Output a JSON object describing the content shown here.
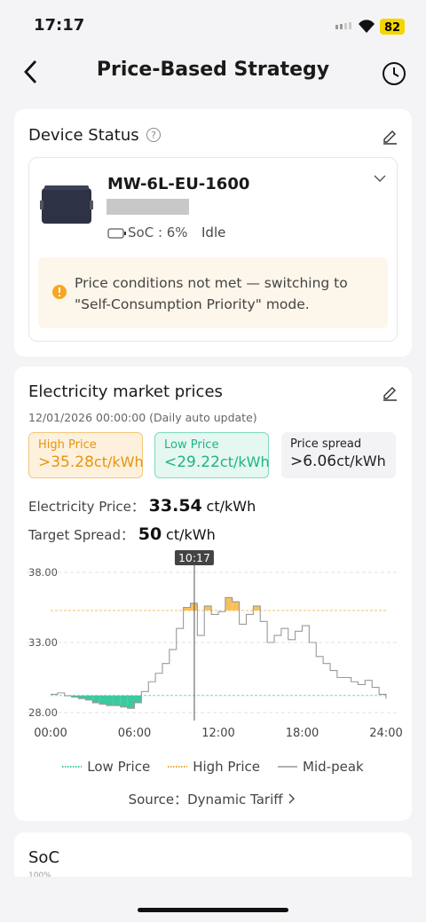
{
  "status_bar": {
    "time": "17:17",
    "battery": "82"
  },
  "header": {
    "title": "Price-Based Strategy"
  },
  "device_status": {
    "title": "Device Status",
    "device": {
      "name": "MW-6L-EU-1600",
      "soc": "SoC : 6%",
      "state": "Idle"
    },
    "warning": "Price conditions not met — switching to \"Self-Consumption Priority\" mode."
  },
  "market": {
    "title": "Electricity market prices",
    "updated": "12/01/2026 00:00:00 (Daily auto update)",
    "summary": [
      {
        "label": "High Price",
        "value": ">35.28",
        "unit": "ct/kWh"
      },
      {
        "label": "Low Price",
        "value": "<29.22",
        "unit": "ct/kWh"
      },
      {
        "label": "Price spread",
        "value": ">6.06",
        "unit": "ct/kWh"
      }
    ],
    "price": {
      "label": "Electricity Price：",
      "value": "33.54",
      "unit": "ct/kWh"
    },
    "target": {
      "label": "Target Spread：",
      "value": "50",
      "unit": "ct/kWh"
    },
    "source": "Source：Dynamic Tariff"
  },
  "chart_data": {
    "type": "step",
    "x": [
      0,
      0.5,
      1,
      1.5,
      2,
      2.5,
      3,
      3.5,
      4,
      4.5,
      5,
      5.5,
      6,
      6.5,
      7,
      7.5,
      8,
      8.5,
      9,
      9.5,
      10,
      10.5,
      11,
      11.5,
      12,
      12.5,
      13,
      13.5,
      14,
      14.5,
      15,
      15.5,
      16,
      16.5,
      17,
      17.5,
      18,
      18.5,
      19,
      19.5,
      20,
      20.5,
      21,
      21.5,
      22,
      22.5,
      23,
      23.5,
      24
    ],
    "xlim": [
      0,
      24
    ],
    "xticks": [
      {
        "value": 0,
        "label": "00:00"
      },
      {
        "value": 6,
        "label": "06:00"
      },
      {
        "value": 12,
        "label": "12:00"
      },
      {
        "value": 18,
        "label": "18:00"
      },
      {
        "value": 24,
        "label": "24:00"
      }
    ],
    "ylim": [
      28,
      38
    ],
    "yticks": [
      {
        "value": 28,
        "label": "28.00"
      },
      {
        "value": 33,
        "label": "33.00"
      },
      {
        "value": 38,
        "label": "38.00"
      }
    ],
    "grid": true,
    "thresholds": [
      {
        "name": "Low Price",
        "value": 29.22,
        "color": "#3cc9a0"
      },
      {
        "name": "High Price",
        "value": 35.28,
        "color": "#f0a530"
      }
    ],
    "series": [
      {
        "name": "Mid-peak",
        "color": "#999999",
        "values": [
          29.3,
          29.4,
          29.2,
          29.1,
          29.0,
          28.9,
          28.7,
          28.6,
          28.5,
          28.5,
          28.4,
          28.3,
          28.7,
          29.5,
          30.2,
          30.8,
          31.5,
          32.5,
          34.0,
          35.5,
          35.8,
          33.5,
          35.6,
          35.0,
          35.2,
          36.2,
          35.9,
          34.3,
          35.0,
          35.6,
          34.5,
          33.0,
          33.5,
          34.0,
          33.2,
          33.8,
          34.2,
          33.0,
          32.0,
          31.5,
          31.0,
          30.5,
          30.5,
          30.2,
          30.0,
          30.3,
          29.8,
          29.3,
          29.0
        ]
      }
    ],
    "cursor": {
      "x": 10.283,
      "label": "10:17"
    }
  },
  "soc": {
    "title": "SoC",
    "tick": "100%"
  }
}
